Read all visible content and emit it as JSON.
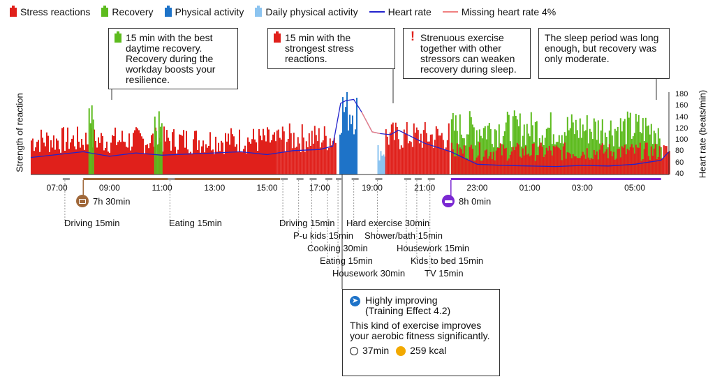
{
  "legend": {
    "stress": {
      "label": "Stress reactions",
      "color": "#e0201b"
    },
    "recovery": {
      "label": "Recovery",
      "color": "#5dbb1e"
    },
    "physical": {
      "label": "Physical activity",
      "color": "#1e73c8"
    },
    "daily_physical": {
      "label": "Daily physical activity",
      "color": "#8cc4f0"
    },
    "heart_rate": {
      "label": "Heart rate",
      "color": "#2222cc"
    },
    "missing_hr": {
      "label": "Missing heart rate 4%",
      "color": "#f08080"
    }
  },
  "callouts": [
    {
      "id": "best-recovery",
      "text": "15 min with the best daytime recovery. Recovery during the workday boosts your resilience.",
      "marker": "recovery"
    },
    {
      "id": "strongest-stress",
      "text": "15 min with the strongest stress reactions.",
      "marker": "stress"
    },
    {
      "id": "strenuous",
      "text": "Strenuous exercise together with other stressors can weaken recovery during sleep.",
      "marker": "exclamation"
    },
    {
      "id": "sleep",
      "text": "The sleep period was long enough, but recovery was only moderate.",
      "marker": "none"
    }
  ],
  "chart_data": {
    "type": "bar",
    "y_left_label": "Strength of reaction",
    "y_right_label": "Heart rate (beats/min)",
    "y_right_ticks": [
      40,
      60,
      80,
      100,
      120,
      140,
      160,
      180
    ],
    "y_right_range": [
      40,
      180
    ],
    "x_range_hours": [
      6.0,
      30.3
    ],
    "x_tick_labels": [
      "07:00",
      "09:00",
      "11:00",
      "13:00",
      "15:00",
      "17:00",
      "19:00",
      "21:00",
      "23:00",
      "01:00",
      "03:00",
      "05:00"
    ],
    "segments": [
      {
        "kind": "stress",
        "start": 6.0,
        "end": 15.3,
        "level": 0.45
      },
      {
        "kind": "recovery",
        "start": 8.2,
        "end": 8.4,
        "level": 0.65
      },
      {
        "kind": "recovery",
        "start": 10.7,
        "end": 11.0,
        "level": 0.6
      },
      {
        "kind": "stress",
        "start": 15.3,
        "end": 17.6,
        "level": 0.48
      },
      {
        "kind": "physical",
        "start": 17.75,
        "end": 18.4,
        "level": 0.85
      },
      {
        "kind": "daily_physical",
        "start": 19.2,
        "end": 19.5,
        "level": 0.3
      },
      {
        "kind": "stress",
        "start": 19.5,
        "end": 21.9,
        "level": 0.5
      },
      {
        "kind": "recovery",
        "start": 22.0,
        "end": 30.0,
        "level": 0.6
      },
      {
        "kind": "stress",
        "start": 22.0,
        "end": 30.3,
        "level": 0.3
      }
    ],
    "heart_rate": {
      "x": [
        6.0,
        7.0,
        8.0,
        9.0,
        10.0,
        11.0,
        12.0,
        13.0,
        14.0,
        15.0,
        16.0,
        17.0,
        17.5,
        17.8,
        18.0,
        18.3,
        18.6,
        19.0,
        19.3,
        19.7,
        20.0,
        21.0,
        22.0,
        23.0,
        24.0,
        25.0,
        26.0,
        27.0,
        28.0,
        29.0,
        30.0,
        30.3
      ],
      "y": [
        70,
        75,
        80,
        72,
        78,
        74,
        76,
        78,
        80,
        75,
        82,
        84,
        90,
        165,
        170,
        172,
        150,
        115,
        112,
        110,
        118,
        95,
        80,
        58,
        56,
        55,
        54,
        56,
        55,
        58,
        65,
        80
      ]
    },
    "missing_hr": {
      "x": [
        18.6,
        19.0,
        19.3
      ],
      "y": [
        150,
        115,
        112
      ]
    }
  },
  "activities": [
    {
      "label": "Driving 15min",
      "time": 7.3
    },
    {
      "label": "Eating 15min",
      "time": 11.3
    },
    {
      "label": "Driving 15min",
      "time": 15.6
    },
    {
      "label": "P-u kids 15min",
      "time": 16.2
    },
    {
      "label": "Cooking 30min",
      "time": 16.7
    },
    {
      "label": "Eating 15min",
      "time": 17.3
    },
    {
      "label": "Housework 30min",
      "time": 17.7
    },
    {
      "label": "Hard exercise 30min",
      "time": 18.3
    },
    {
      "label": "Shower/bath 15min",
      "time": 19.2
    },
    {
      "label": "Housework 15min",
      "time": 20.3
    },
    {
      "label": "Kids to bed 15min",
      "time": 20.7
    },
    {
      "label": "TV 15min",
      "time": 21.2
    }
  ],
  "durations": {
    "work": {
      "label": "7h 30min",
      "color": "#a0683a"
    },
    "sleep": {
      "label": "8h 0min",
      "color": "#7a28d2"
    }
  },
  "exercise": {
    "title": "Highly improving",
    "subtitle": "(Training Effect 4.2)",
    "description": "This kind of exercise improves your aerobic fitness significantly.",
    "duration": "37min",
    "energy": "259 kcal"
  }
}
